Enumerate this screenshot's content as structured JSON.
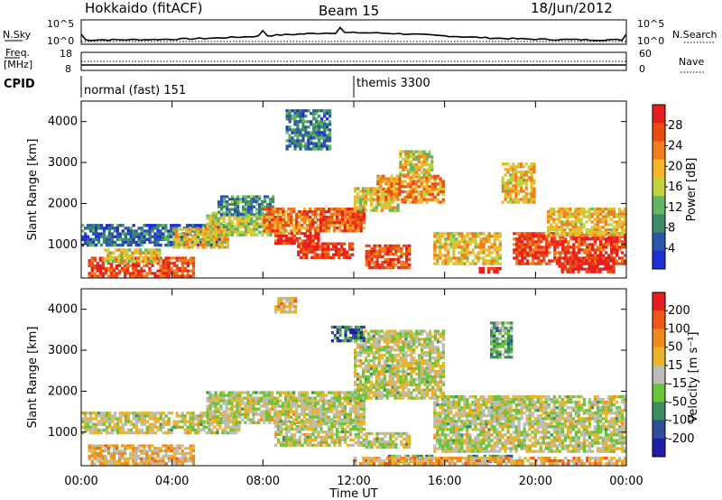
{
  "header": {
    "station": "Hokkaido (fitACF)",
    "beam": "Beam 15",
    "date": "18/Jun/2012"
  },
  "nsky_panel": {
    "left_label": "N.Sky",
    "right_label": "N.Search",
    "left_ticks": [
      "10^5",
      "10^0"
    ],
    "right_ticks": [
      "10^5",
      "10^0"
    ]
  },
  "freq_panel": {
    "left_label_1": "Freq.",
    "left_label_2": "[MHz]",
    "left_ticks": [
      "18",
      "8"
    ],
    "right_label": "Nave",
    "right_ticks": [
      "60",
      "0"
    ]
  },
  "cpid_panel": {
    "label": "CPID",
    "modes": [
      {
        "label": "normal (fast) 151",
        "start_hour": 0
      },
      {
        "label": "themis 3300",
        "start_hour": 12
      }
    ]
  },
  "colors": {
    "power_scale": [
      "#1f2fd6",
      "#2c56a8",
      "#3e8b6a",
      "#65b562",
      "#c0d23e",
      "#f7b52a",
      "#f37d1a",
      "#ea4a14",
      "#e81e1e"
    ],
    "velocity_scale": [
      "#1e1ea8",
      "#2e4e9a",
      "#3f8d5e",
      "#6ac43c",
      "#bdbdb7",
      "#e8b42c",
      "#f08a1e",
      "#ee561a",
      "#e61e1e"
    ]
  },
  "chart_data": [
    {
      "type": "heatmap",
      "title": "",
      "xlabel": "",
      "ylabel": "Slant Range [km]",
      "xlim": [
        0,
        24
      ],
      "ylim": [
        180,
        4500
      ],
      "x_ticks": [
        "00:00",
        "04:00",
        "08:00",
        "12:00",
        "16:00",
        "20:00",
        "00:00"
      ],
      "y_ticks": [
        1000,
        2000,
        3000,
        4000
      ],
      "colorbar": {
        "label": "Power [dB]",
        "ticks": [
          "28",
          "24",
          "20",
          "16",
          "12",
          "8",
          "4"
        ]
      },
      "regions": [
        {
          "t0": 0.0,
          "t1": 6.5,
          "r0": 950,
          "r1": 1500,
          "level": 0.2
        },
        {
          "t0": 0.3,
          "t1": 5.0,
          "r0": 200,
          "r1": 700,
          "level": 0.85
        },
        {
          "t0": 1.0,
          "t1": 3.5,
          "r0": 550,
          "r1": 900,
          "level": 0.55
        },
        {
          "t0": 4.0,
          "t1": 6.5,
          "r0": 900,
          "r1": 1400,
          "level": 0.6
        },
        {
          "t0": 5.5,
          "t1": 9.0,
          "r0": 1200,
          "r1": 1800,
          "level": 0.5
        },
        {
          "t0": 6.0,
          "t1": 8.5,
          "r0": 1700,
          "r1": 2200,
          "level": 0.3
        },
        {
          "t0": 8.0,
          "t1": 12.5,
          "r0": 1300,
          "r1": 1900,
          "level": 0.75
        },
        {
          "t0": 8.5,
          "t1": 10.5,
          "r0": 1000,
          "r1": 1300,
          "level": 0.9
        },
        {
          "t0": 9.5,
          "t1": 12.0,
          "r0": 650,
          "r1": 1050,
          "level": 0.9
        },
        {
          "t0": 10.5,
          "t1": 12.5,
          "r0": 1500,
          "r1": 1900,
          "level": 0.85
        },
        {
          "t0": 12.0,
          "t1": 14.0,
          "r0": 1800,
          "r1": 2400,
          "level": 0.55
        },
        {
          "t0": 12.5,
          "t1": 14.5,
          "r0": 400,
          "r1": 1000,
          "level": 0.85
        },
        {
          "t0": 13.0,
          "t1": 16.0,
          "r0": 2000,
          "r1": 2700,
          "level": 0.7
        },
        {
          "t0": 14.0,
          "t1": 15.5,
          "r0": 2600,
          "r1": 3300,
          "level": 0.55
        },
        {
          "t0": 9.0,
          "t1": 11.0,
          "r0": 3300,
          "r1": 4300,
          "level": 0.25
        },
        {
          "t0": 15.5,
          "t1": 18.5,
          "r0": 500,
          "r1": 1300,
          "level": 0.6
        },
        {
          "t0": 17.5,
          "t1": 18.5,
          "r0": 300,
          "r1": 450,
          "level": 1.0
        },
        {
          "t0": 18.5,
          "t1": 20.0,
          "r0": 2000,
          "r1": 3000,
          "level": 0.6
        },
        {
          "t0": 19.0,
          "t1": 24.0,
          "r0": 500,
          "r1": 1300,
          "level": 0.85
        },
        {
          "t0": 20.5,
          "t1": 24.0,
          "r0": 1200,
          "r1": 1900,
          "level": 0.6
        },
        {
          "t0": 21.0,
          "t1": 23.5,
          "r0": 300,
          "r1": 700,
          "level": 0.95
        }
      ]
    },
    {
      "type": "heatmap",
      "title": "",
      "xlabel": "Time UT",
      "ylabel": "Slant Range [km]",
      "xlim": [
        0,
        24
      ],
      "ylim": [
        180,
        4500
      ],
      "x_ticks": [
        "00:00",
        "04:00",
        "08:00",
        "12:00",
        "16:00",
        "20:00",
        "00:00"
      ],
      "y_ticks": [
        1000,
        2000,
        3000,
        4000
      ],
      "colorbar": {
        "label": "Velocity [m s⁻¹]",
        "ticks": [
          "200",
          "100",
          "50",
          "15",
          "-15",
          "-50",
          "-100",
          "-200"
        ]
      },
      "regions": [
        {
          "t0": 0.0,
          "t1": 7.0,
          "r0": 950,
          "r1": 1500,
          "level": 0.5
        },
        {
          "t0": 0.3,
          "t1": 5.0,
          "r0": 200,
          "r1": 700,
          "level": 0.62
        },
        {
          "t0": 5.5,
          "t1": 12.5,
          "r0": 1200,
          "r1": 2000,
          "level": 0.5
        },
        {
          "t0": 8.5,
          "t1": 12.5,
          "r0": 650,
          "r1": 1300,
          "level": 0.5
        },
        {
          "t0": 12.0,
          "t1": 16.0,
          "r0": 1800,
          "r1": 3500,
          "level": 0.5
        },
        {
          "t0": 12.5,
          "t1": 14.5,
          "r0": 600,
          "r1": 1000,
          "level": 0.5
        },
        {
          "t0": 13.5,
          "t1": 15.5,
          "r0": 250,
          "r1": 450,
          "level": 0.35
        },
        {
          "t0": 17.0,
          "t1": 19.0,
          "r0": 250,
          "r1": 450,
          "level": 0.35
        },
        {
          "t0": 18.0,
          "t1": 19.0,
          "r0": 2800,
          "r1": 3700,
          "level": 0.35
        },
        {
          "t0": 15.5,
          "t1": 24.0,
          "r0": 500,
          "r1": 1900,
          "level": 0.5
        },
        {
          "t0": 11.0,
          "t1": 12.5,
          "r0": 3200,
          "r1": 3600,
          "level": 0.2
        },
        {
          "t0": 8.5,
          "t1": 9.5,
          "r0": 3900,
          "r1": 4300,
          "level": 0.65
        },
        {
          "t0": 12.0,
          "t1": 24.0,
          "r0": 200,
          "r1": 400,
          "level": 0.65
        }
      ]
    }
  ]
}
